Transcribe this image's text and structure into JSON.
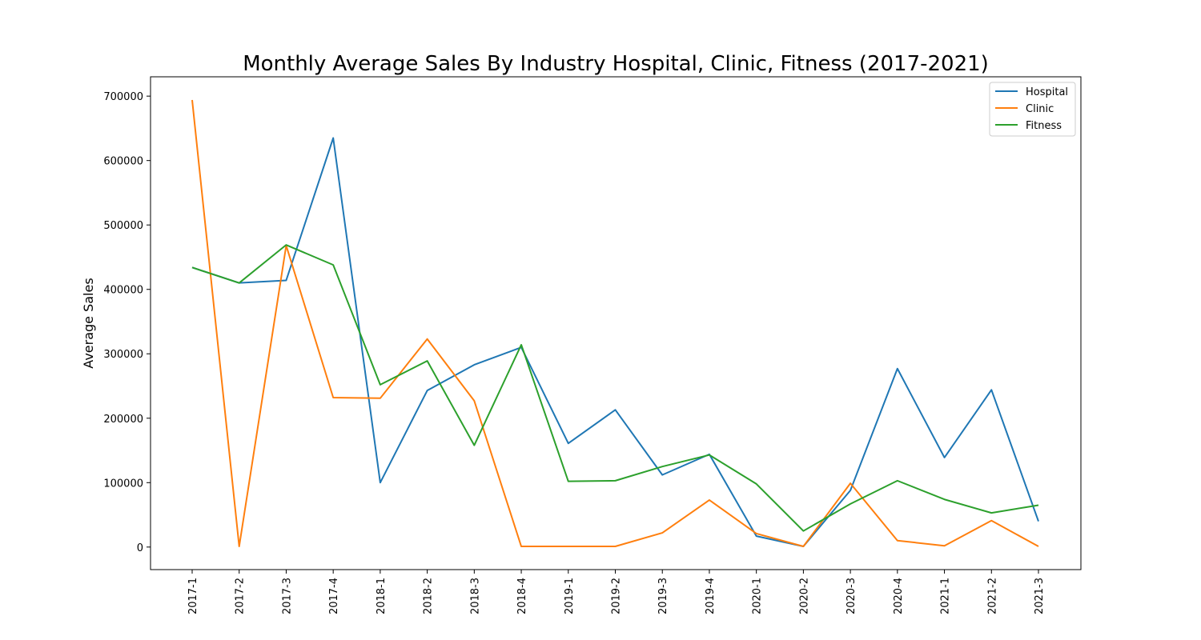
{
  "chart_data": {
    "type": "line",
    "title": "Monthly Average Sales By Industry Hospital, Clinic, Fitness (2017-2021)",
    "xlabel": "",
    "ylabel": "Average Sales",
    "categories": [
      "2017-1",
      "2017-2",
      "2017-3",
      "2017-4",
      "2018-1",
      "2018-2",
      "2018-3",
      "2018-4",
      "2019-1",
      "2019-2",
      "2019-3",
      "2019-4",
      "2020-1",
      "2020-2",
      "2020-3",
      "2020-4",
      "2021-1",
      "2021-2",
      "2021-3"
    ],
    "yticks": [
      0,
      100000,
      200000,
      300000,
      400000,
      500000,
      600000,
      700000
    ],
    "ylim": [
      -35000,
      730000
    ],
    "grid": false,
    "legend_position": "top-right",
    "series": [
      {
        "name": "Hospital",
        "color": "#1f77b4",
        "values": [
          434000,
          410000,
          414000,
          635000,
          100000,
          243000,
          283000,
          310000,
          161000,
          213000,
          112000,
          144000,
          17000,
          1000,
          88000,
          277000,
          139000,
          244000,
          40000
        ]
      },
      {
        "name": "Clinic",
        "color": "#ff7f0e",
        "values": [
          694000,
          1000,
          468000,
          232000,
          231000,
          323000,
          227000,
          1000,
          1000,
          1000,
          22000,
          73000,
          21000,
          1000,
          99000,
          10000,
          2000,
          41000,
          1000
        ]
      },
      {
        "name": "Fitness",
        "color": "#2ca02c",
        "values": [
          434000,
          410000,
          469000,
          438000,
          252000,
          289000,
          158000,
          314000,
          102000,
          103000,
          125000,
          143000,
          98000,
          25000,
          67000,
          103000,
          74000,
          53000,
          65000
        ]
      }
    ]
  }
}
